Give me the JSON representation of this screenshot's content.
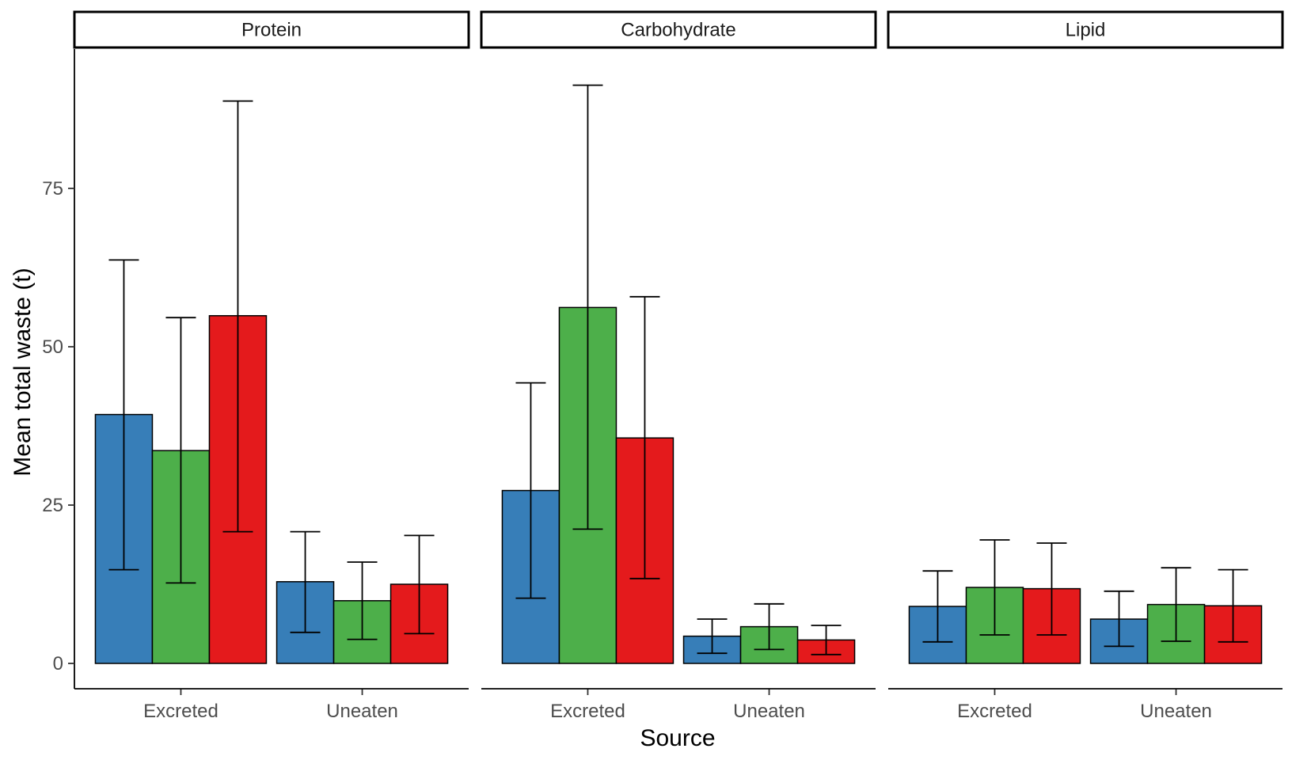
{
  "chart_data": {
    "type": "bar",
    "xlabel": "Source",
    "ylabel": "Mean total waste (t)",
    "ylim": [
      -4,
      97
    ],
    "yticks": [
      0,
      25,
      50,
      75
    ],
    "categories": [
      "Excreted",
      "Uneaten"
    ],
    "series_colors": [
      "#377eb8",
      "#4daf4a",
      "#e41a1c"
    ],
    "grid": false,
    "legend": "none",
    "facets": [
      {
        "label": "Protein",
        "groups": [
          {
            "category": "Excreted",
            "bars": [
              {
                "value": 39.3,
                "lower": 14.8,
                "upper": 63.7
              },
              {
                "value": 33.6,
                "lower": 12.7,
                "upper": 54.6
              },
              {
                "value": 54.9,
                "lower": 20.8,
                "upper": 88.8
              }
            ]
          },
          {
            "category": "Uneaten",
            "bars": [
              {
                "value": 12.9,
                "lower": 4.9,
                "upper": 20.8
              },
              {
                "value": 9.9,
                "lower": 3.8,
                "upper": 16.0
              },
              {
                "value": 12.5,
                "lower": 4.7,
                "upper": 20.2
              }
            ]
          }
        ]
      },
      {
        "label": "Carbohydrate",
        "groups": [
          {
            "category": "Excreted",
            "bars": [
              {
                "value": 27.3,
                "lower": 10.3,
                "upper": 44.3
              },
              {
                "value": 56.2,
                "lower": 21.2,
                "upper": 91.3
              },
              {
                "value": 35.6,
                "lower": 13.4,
                "upper": 57.9
              }
            ]
          },
          {
            "category": "Uneaten",
            "bars": [
              {
                "value": 4.3,
                "lower": 1.6,
                "upper": 7.0
              },
              {
                "value": 5.8,
                "lower": 2.2,
                "upper": 9.4
              },
              {
                "value": 3.7,
                "lower": 1.4,
                "upper": 6.0
              }
            ]
          }
        ]
      },
      {
        "label": "Lipid",
        "groups": [
          {
            "category": "Excreted",
            "bars": [
              {
                "value": 9.0,
                "lower": 3.4,
                "upper": 14.6
              },
              {
                "value": 12.0,
                "lower": 4.5,
                "upper": 19.5
              },
              {
                "value": 11.8,
                "lower": 4.5,
                "upper": 19.0
              }
            ]
          },
          {
            "category": "Uneaten",
            "bars": [
              {
                "value": 7.0,
                "lower": 2.7,
                "upper": 11.4
              },
              {
                "value": 9.3,
                "lower": 3.5,
                "upper": 15.1
              },
              {
                "value": 9.1,
                "lower": 3.4,
                "upper": 14.8
              }
            ]
          }
        ]
      }
    ]
  }
}
